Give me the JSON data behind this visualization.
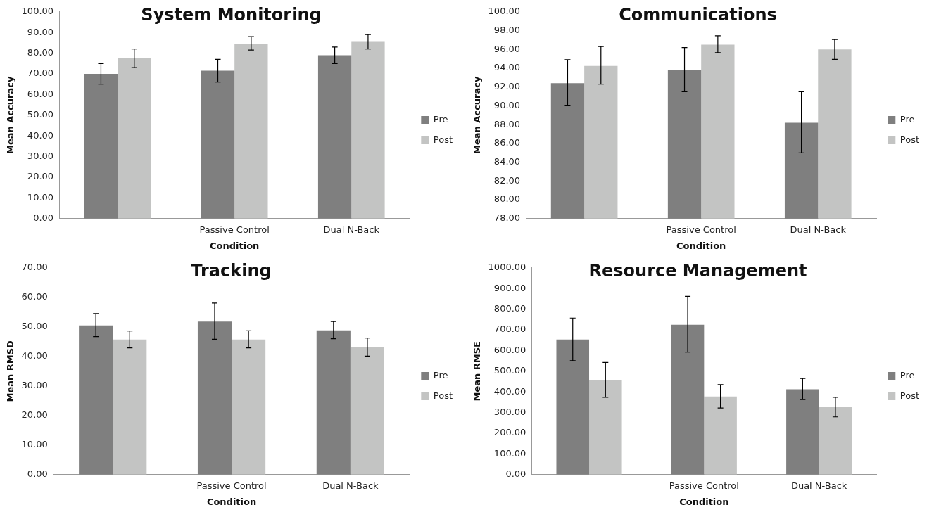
{
  "chart_data": [
    {
      "type": "bar",
      "title": "System Monitoring",
      "xlabel": "Condition",
      "ylabel": "Mean Accuracy",
      "categories": [
        null,
        "Passive Control",
        "Dual N-Back"
      ],
      "legend": "right",
      "grid": false,
      "series": [
        {
          "name": "Pre",
          "color": "#7f7f7f",
          "values": [
            70.0,
            71.5,
            79.0
          ],
          "errors": [
            [
              65.0,
              75.0
            ],
            [
              66.0,
              77.0
            ],
            [
              75.0,
              83.0
            ]
          ]
        },
        {
          "name": "Post",
          "color": "#c3c4c3",
          "values": [
            77.5,
            84.5,
            85.5
          ],
          "errors": [
            [
              73.0,
              82.0
            ],
            [
              81.5,
              88.0
            ],
            [
              82.0,
              89.0
            ]
          ]
        }
      ],
      "ylim": [
        0,
        100
      ],
      "yticks": [
        {
          "value": 0,
          "label": "0.00"
        },
        {
          "value": 10,
          "label": "10.00"
        },
        {
          "value": 20,
          "label": "20.00"
        },
        {
          "value": 30,
          "label": "30.00"
        },
        {
          "value": 40,
          "label": "40.00"
        },
        {
          "value": 50,
          "label": "50.00"
        },
        {
          "value": 60,
          "label": "60.00"
        },
        {
          "value": 70,
          "label": "70.00"
        },
        {
          "value": 80,
          "label": "80.00"
        },
        {
          "value": 90,
          "label": "90.00"
        },
        {
          "value": 100,
          "label": "100.00"
        }
      ]
    },
    {
      "type": "bar",
      "title": "Communications",
      "xlabel": "Condition",
      "ylabel": "Mean Accuracy",
      "categories": [
        null,
        "Passive Control",
        "Dual N-Back"
      ],
      "legend": "right",
      "grid": false,
      "series": [
        {
          "name": "Pre",
          "color": "#7f7f7f",
          "values": [
            92.4,
            93.85,
            88.2
          ],
          "errors": [
            [
              90.0,
              94.9
            ],
            [
              91.5,
              96.2
            ],
            [
              85.0,
              91.5
            ]
          ]
        },
        {
          "name": "Post",
          "color": "#c3c4c3",
          "values": [
            94.25,
            96.5,
            96.0
          ],
          "errors": [
            [
              92.3,
              96.3
            ],
            [
              95.65,
              97.45
            ],
            [
              94.95,
              97.05
            ]
          ]
        }
      ],
      "ylim": [
        78,
        100
      ],
      "yticks": [
        {
          "value": 78,
          "label": "78.00"
        },
        {
          "value": 80,
          "label": "80.00"
        },
        {
          "value": 82,
          "label": "82.00"
        },
        {
          "value": 84,
          "label": "84.00"
        },
        {
          "value": 86,
          "label": "86.00"
        },
        {
          "value": 88,
          "label": "88.00"
        },
        {
          "value": 90,
          "label": "90.00"
        },
        {
          "value": 92,
          "label": "92.00"
        },
        {
          "value": 94,
          "label": "94.00"
        },
        {
          "value": 96,
          "label": "96.00"
        },
        {
          "value": 98,
          "label": "98.00"
        },
        {
          "value": 100,
          "label": "100.00"
        }
      ]
    },
    {
      "type": "bar",
      "title": "Tracking",
      "xlabel": "Condition",
      "ylabel": "Mean RMSD",
      "categories": [
        null,
        "Passive Control",
        "Dual N-Back"
      ],
      "legend": "right",
      "grid": false,
      "series": [
        {
          "name": "Pre",
          "color": "#7f7f7f",
          "values": [
            50.5,
            51.8,
            48.8
          ],
          "errors": [
            [
              46.7,
              54.5
            ],
            [
              45.8,
              58.1
            ],
            [
              46.0,
              51.8
            ]
          ]
        },
        {
          "name": "Post",
          "color": "#c3c4c3",
          "values": [
            45.7,
            45.7,
            43.1
          ],
          "errors": [
            [
              42.9,
              48.6
            ],
            [
              42.9,
              48.7
            ],
            [
              40.1,
              46.2
            ]
          ]
        }
      ],
      "ylim": [
        0,
        70
      ],
      "yticks": [
        {
          "value": 0,
          "label": "0.00"
        },
        {
          "value": 10,
          "label": "10.00"
        },
        {
          "value": 20,
          "label": "20.00"
        },
        {
          "value": 30,
          "label": "30.00"
        },
        {
          "value": 40,
          "label": "40.00"
        },
        {
          "value": 50,
          "label": "50.00"
        },
        {
          "value": 60,
          "label": "60.00"
        },
        {
          "value": 70,
          "label": "70.00"
        }
      ]
    },
    {
      "type": "bar",
      "title": "Resource Management",
      "xlabel": "Condition",
      "ylabel": "Mean RMSE",
      "categories": [
        null,
        "Passive Control",
        "Dual N-Back"
      ],
      "legend": "right",
      "grid": false,
      "series": [
        {
          "name": "Pre",
          "color": "#7f7f7f",
          "values": [
            653,
            725,
            413
          ],
          "errors": [
            [
              551,
              757
            ],
            [
              592,
              862
            ],
            [
              363,
              465
            ]
          ]
        },
        {
          "name": "Post",
          "color": "#c3c4c3",
          "values": [
            458,
            378,
            326
          ],
          "errors": [
            [
              374,
              542
            ],
            [
              322,
              435
            ],
            [
              279,
              374
            ]
          ]
        }
      ],
      "ylim": [
        0,
        1000
      ],
      "yticks": [
        {
          "value": 0,
          "label": "0.00"
        },
        {
          "value": 100,
          "label": "100.00"
        },
        {
          "value": 200,
          "label": "200.00"
        },
        {
          "value": 300,
          "label": "300.00"
        },
        {
          "value": 400,
          "label": "400.00"
        },
        {
          "value": 500,
          "label": "500.00"
        },
        {
          "value": 600,
          "label": "600.00"
        },
        {
          "value": 700,
          "label": "700.00"
        },
        {
          "value": 800,
          "label": "800.00"
        },
        {
          "value": 900,
          "label": "900.00"
        },
        {
          "value": 1000,
          "label": "1000.00"
        }
      ]
    }
  ]
}
